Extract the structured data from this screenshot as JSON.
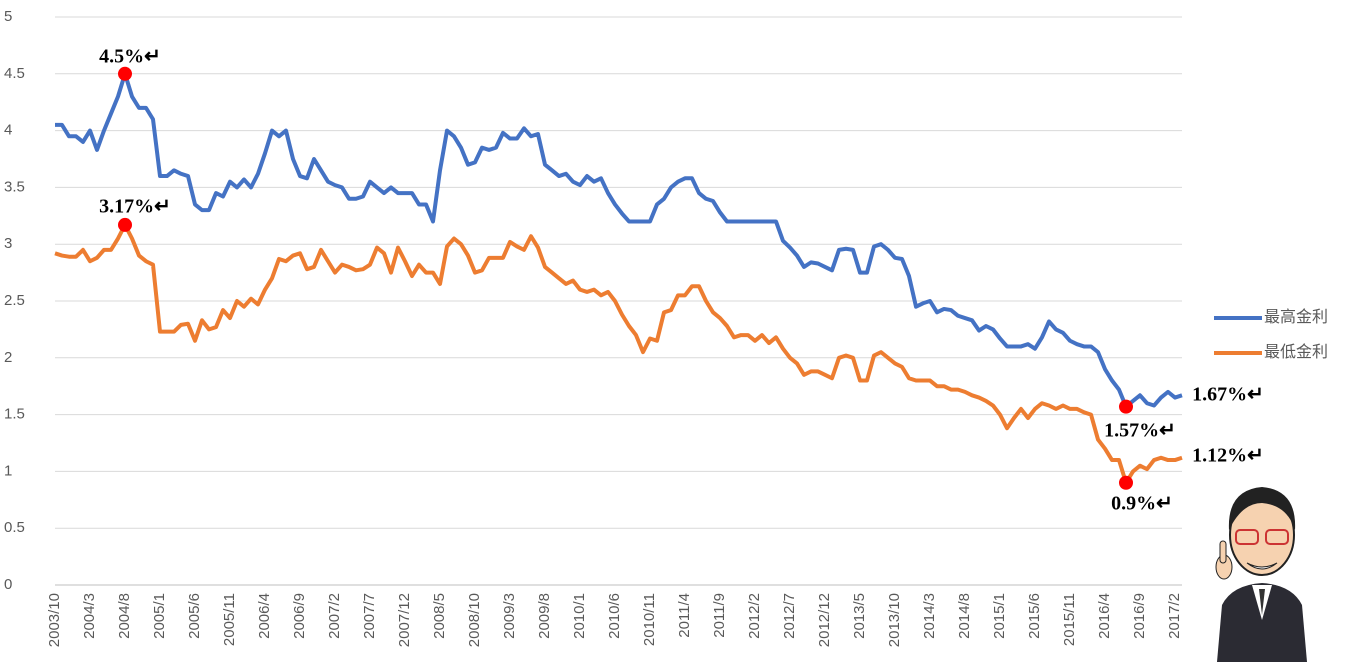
{
  "chart_data": {
    "type": "line",
    "categories": [
      "2003/10",
      null,
      null,
      null,
      null,
      "2004/3",
      null,
      null,
      null,
      null,
      "2004/8",
      null,
      null,
      null,
      null,
      "2005/1",
      null,
      null,
      null,
      null,
      "2005/6",
      null,
      null,
      null,
      null,
      "2005/11",
      null,
      null,
      null,
      null,
      "2006/4",
      null,
      null,
      null,
      null,
      "2006/9",
      null,
      null,
      null,
      null,
      "2007/2",
      null,
      null,
      null,
      null,
      "2007/7",
      null,
      null,
      null,
      null,
      "2007/12",
      null,
      null,
      null,
      null,
      "2008/5",
      null,
      null,
      null,
      null,
      "2008/10",
      null,
      null,
      null,
      null,
      "2009/3",
      null,
      null,
      null,
      null,
      "2009/8",
      null,
      null,
      null,
      null,
      "2010/1",
      null,
      null,
      null,
      null,
      "2010/6",
      null,
      null,
      null,
      null,
      "2010/11",
      null,
      null,
      null,
      null,
      "2011/4",
      null,
      null,
      null,
      null,
      "2011/9",
      null,
      null,
      null,
      null,
      "2012/2",
      null,
      null,
      null,
      null,
      "2012/7",
      null,
      null,
      null,
      null,
      "2012/12",
      null,
      null,
      null,
      null,
      "2013/5",
      null,
      null,
      null,
      null,
      "2013/10",
      null,
      null,
      null,
      null,
      "2014/3",
      null,
      null,
      null,
      null,
      "2014/8",
      null,
      null,
      null,
      null,
      "2015/1",
      null,
      null,
      null,
      null,
      "2015/6",
      null,
      null,
      null,
      null,
      "2015/11",
      null,
      null,
      null,
      null,
      "2016/4",
      null,
      null,
      null,
      null,
      "2016/9",
      null,
      null,
      null,
      null,
      "2017/2",
      null
    ],
    "series": [
      {
        "name": "最高金利",
        "color": "#4472c4",
        "values": [
          4.05,
          4.05,
          3.95,
          3.95,
          3.9,
          4.0,
          3.83,
          4.0,
          4.15,
          4.3,
          4.5,
          4.3,
          4.2,
          4.2,
          4.1,
          3.6,
          3.6,
          3.65,
          3.62,
          3.6,
          3.35,
          3.3,
          3.3,
          3.45,
          3.42,
          3.55,
          3.5,
          3.57,
          3.5,
          3.62,
          3.8,
          4.0,
          3.95,
          4.0,
          3.75,
          3.6,
          3.58,
          3.75,
          3.65,
          3.55,
          3.52,
          3.5,
          3.4,
          3.4,
          3.42,
          3.55,
          3.5,
          3.45,
          3.5,
          3.45,
          3.45,
          3.45,
          3.35,
          3.35,
          3.2,
          3.65,
          4.0,
          3.95,
          3.85,
          3.7,
          3.72,
          3.85,
          3.83,
          3.85,
          3.98,
          3.93,
          3.93,
          4.02,
          3.95,
          3.97,
          3.7,
          3.65,
          3.6,
          3.62,
          3.55,
          3.52,
          3.6,
          3.55,
          3.58,
          3.45,
          3.35,
          3.27,
          3.2,
          3.2,
          3.2,
          3.2,
          3.35,
          3.4,
          3.5,
          3.55,
          3.58,
          3.58,
          3.45,
          3.4,
          3.38,
          3.28,
          3.2,
          3.2,
          3.2,
          3.2,
          3.2,
          3.2,
          3.2,
          3.2,
          3.03,
          2.97,
          2.9,
          2.8,
          2.84,
          2.83,
          2.8,
          2.77,
          2.95,
          2.96,
          2.95,
          2.75,
          2.75,
          2.98,
          3.0,
          2.95,
          2.88,
          2.87,
          2.72,
          2.45,
          2.48,
          2.5,
          2.4,
          2.43,
          2.42,
          2.37,
          2.35,
          2.33,
          2.24,
          2.28,
          2.25,
          2.17,
          2.1,
          2.1,
          2.1,
          2.12,
          2.08,
          2.18,
          2.32,
          2.25,
          2.22,
          2.15,
          2.12,
          2.1,
          2.1,
          2.05,
          1.9,
          1.8,
          1.72,
          1.57,
          1.62,
          1.67,
          1.6,
          1.58,
          1.65,
          1.7,
          1.65,
          1.67
        ]
      },
      {
        "name": "最低金利",
        "color": "#ed7d31",
        "values": [
          2.92,
          2.9,
          2.89,
          2.89,
          2.95,
          2.85,
          2.88,
          2.95,
          2.95,
          3.05,
          3.17,
          3.05,
          2.9,
          2.85,
          2.82,
          2.23,
          2.23,
          2.23,
          2.29,
          2.3,
          2.15,
          2.33,
          2.25,
          2.27,
          2.42,
          2.35,
          2.5,
          2.45,
          2.52,
          2.47,
          2.6,
          2.7,
          2.87,
          2.85,
          2.9,
          2.92,
          2.78,
          2.8,
          2.95,
          2.85,
          2.75,
          2.82,
          2.8,
          2.77,
          2.78,
          2.82,
          2.97,
          2.92,
          2.75,
          2.97,
          2.85,
          2.72,
          2.82,
          2.75,
          2.75,
          2.65,
          2.98,
          3.05,
          3.0,
          2.9,
          2.75,
          2.77,
          2.88,
          2.88,
          2.88,
          3.02,
          2.98,
          2.95,
          3.07,
          2.97,
          2.8,
          2.75,
          2.7,
          2.65,
          2.68,
          2.6,
          2.58,
          2.6,
          2.55,
          2.58,
          2.5,
          2.38,
          2.28,
          2.2,
          2.05,
          2.17,
          2.15,
          2.4,
          2.42,
          2.55,
          2.55,
          2.63,
          2.63,
          2.5,
          2.4,
          2.35,
          2.28,
          2.18,
          2.2,
          2.2,
          2.15,
          2.2,
          2.13,
          2.18,
          2.08,
          2.0,
          1.95,
          1.85,
          1.88,
          1.88,
          1.85,
          1.82,
          2.0,
          2.02,
          2.0,
          1.8,
          1.8,
          2.02,
          2.05,
          2.0,
          1.95,
          1.92,
          1.82,
          1.8,
          1.8,
          1.8,
          1.75,
          1.75,
          1.72,
          1.72,
          1.7,
          1.67,
          1.65,
          1.62,
          1.58,
          1.5,
          1.38,
          1.47,
          1.55,
          1.47,
          1.55,
          1.6,
          1.58,
          1.55,
          1.58,
          1.55,
          1.55,
          1.52,
          1.5,
          1.28,
          1.2,
          1.1,
          1.1,
          0.9,
          1.0,
          1.05,
          1.02,
          1.1,
          1.12,
          1.1,
          1.1,
          1.12
        ]
      }
    ],
    "annotations": [
      "4.5%↵",
      "3.17%↵",
      "1.57%↵",
      "0.9%↵",
      "1.67%↵",
      "1.12%↵"
    ],
    "ylim": [
      0,
      5
    ],
    "yticks": [
      0,
      0.5,
      1,
      1.5,
      2,
      2.5,
      3,
      3.5,
      4,
      4.5,
      5
    ],
    "grid": true,
    "legend": "right"
  }
}
